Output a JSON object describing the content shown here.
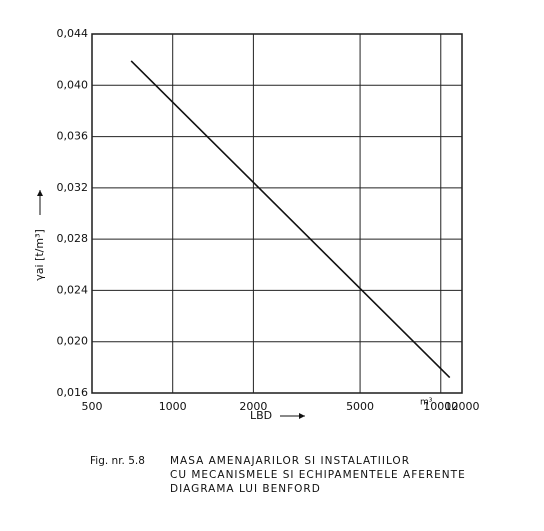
{
  "chart_data": {
    "type": "line",
    "x_label": "LBD",
    "x_unit": "m³",
    "y_label": "γai [t/m³]",
    "x": [
      700,
      10800
    ],
    "series": [
      {
        "name": "LBD",
        "color": "#111111",
        "values": [
          0.0419,
          0.0172
        ]
      }
    ],
    "xlim": [
      500,
      12000
    ],
    "xscale": "log",
    "xticks": [
      500,
      1000,
      2000,
      5000,
      10000,
      12000
    ],
    "ylim": [
      0.016,
      0.044
    ],
    "yticks": [
      {
        "value": 0.016,
        "label": "0,016"
      },
      {
        "value": 0.02,
        "label": "0,020"
      },
      {
        "value": 0.024,
        "label": "0,024"
      },
      {
        "value": 0.028,
        "label": "0,028"
      },
      {
        "value": 0.032,
        "label": "0,032"
      },
      {
        "value": 0.036,
        "label": "0,036"
      },
      {
        "value": 0.04,
        "label": "0,040"
      },
      {
        "value": 0.044,
        "label": "0,044"
      }
    ],
    "grid": true,
    "caption": {
      "figure": "Fig. nr. 5.8",
      "lines": [
        "MASA AMENAJARILOR SI INSTALATIILOR",
        "CU MECANISMELE SI ECHIPAMENTELE AFERENTE",
        "DIAGRAMA LUI BENFORD"
      ]
    }
  }
}
